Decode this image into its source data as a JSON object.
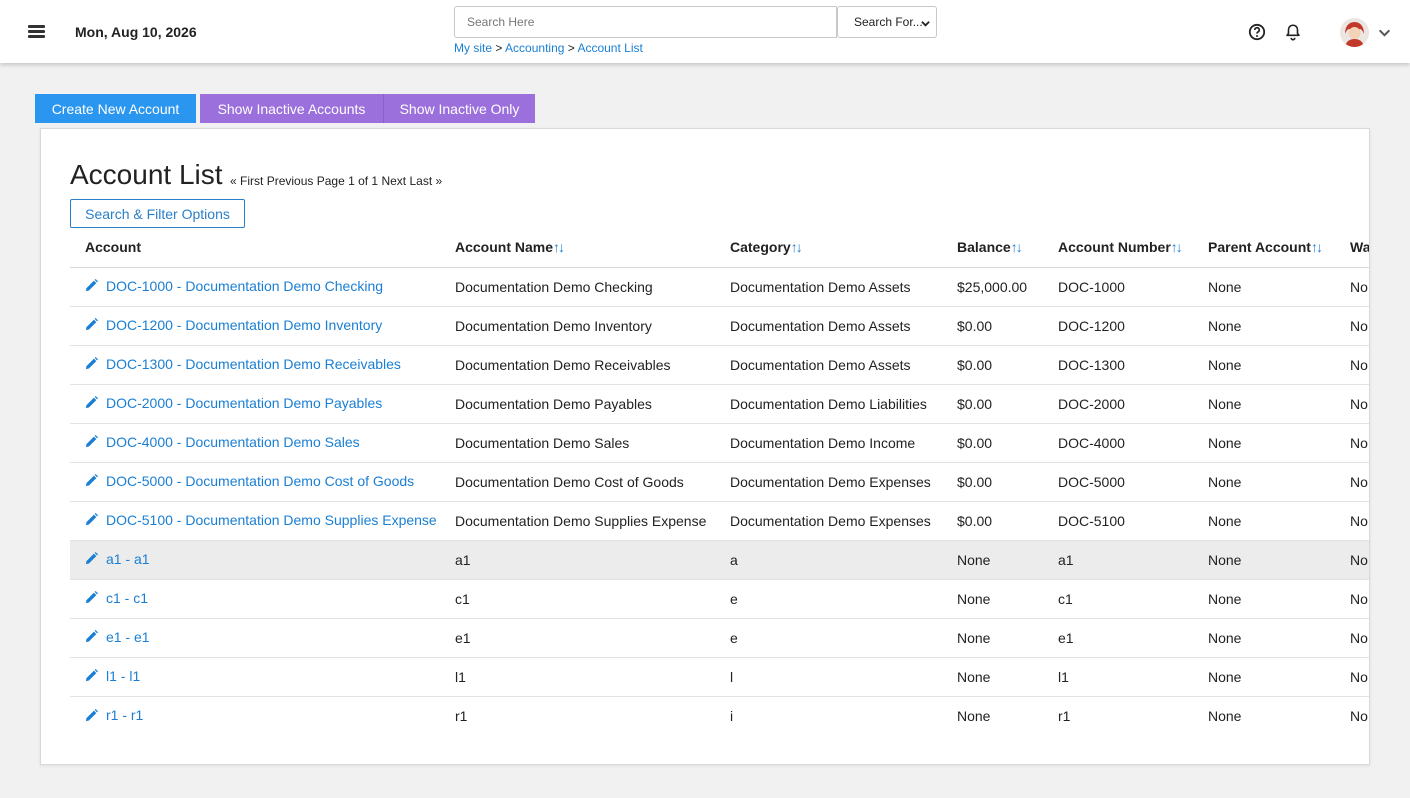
{
  "header": {
    "date": "Mon, Aug 10, 2026",
    "search_placeholder": "Search Here",
    "search_select": "Search For...",
    "breadcrumb": [
      "My site",
      "Accounting",
      "Account List"
    ],
    "breadcrumb_sep": ">"
  },
  "actions": {
    "create": "Create New Account",
    "show_inactive": "Show Inactive Accounts",
    "show_inactive_only": "Show Inactive Only"
  },
  "page": {
    "title": "Account List",
    "pager": {
      "first": "« First",
      "previous": "Previous",
      "page_info": "Page 1 of 1",
      "next": "Next",
      "last": "Last »"
    },
    "filter_button": "Search & Filter Options"
  },
  "colors": {
    "primary": "#2a96f0",
    "purple": "#9b6fdc",
    "link": "#1a7fd4"
  },
  "table": {
    "sort_glyph": "↑↓",
    "columns": [
      "Account",
      "Account Name",
      "Category",
      "Balance",
      "Account Number",
      "Parent Account",
      "Wa"
    ],
    "rows": [
      {
        "account": "DOC-1000 - Documentation Demo Checking",
        "name": "Documentation Demo Checking",
        "category": "Documentation Demo Assets",
        "balance": "$25,000.00",
        "number": "DOC-1000",
        "parent": "None",
        "wa": "No"
      },
      {
        "account": "DOC-1200 - Documentation Demo Inventory",
        "name": "Documentation Demo Inventory",
        "category": "Documentation Demo Assets",
        "balance": "$0.00",
        "number": "DOC-1200",
        "parent": "None",
        "wa": "No"
      },
      {
        "account": "DOC-1300 - Documentation Demo Receivables",
        "name": "Documentation Demo Receivables",
        "category": "Documentation Demo Assets",
        "balance": "$0.00",
        "number": "DOC-1300",
        "parent": "None",
        "wa": "No"
      },
      {
        "account": "DOC-2000 - Documentation Demo Payables",
        "name": "Documentation Demo Payables",
        "category": "Documentation Demo Liabilities",
        "balance": "$0.00",
        "number": "DOC-2000",
        "parent": "None",
        "wa": "No"
      },
      {
        "account": "DOC-4000 - Documentation Demo Sales",
        "name": "Documentation Demo Sales",
        "category": "Documentation Demo Income",
        "balance": "$0.00",
        "number": "DOC-4000",
        "parent": "None",
        "wa": "No"
      },
      {
        "account": "DOC-5000 - Documentation Demo Cost of Goods",
        "name": "Documentation Demo Cost of Goods",
        "category": "Documentation Demo Expenses",
        "balance": "$0.00",
        "number": "DOC-5000",
        "parent": "None",
        "wa": "No"
      },
      {
        "account": "DOC-5100 - Documentation Demo Supplies Expense",
        "name": "Documentation Demo Supplies Expense",
        "category": "Documentation Demo Expenses",
        "balance": "$0.00",
        "number": "DOC-5100",
        "parent": "None",
        "wa": "No"
      },
      {
        "account": "a1 - a1",
        "name": "a1",
        "category": "a",
        "balance": "None",
        "number": "a1",
        "parent": "None",
        "wa": "No"
      },
      {
        "account": "c1 - c1",
        "name": "c1",
        "category": "e",
        "balance": "None",
        "number": "c1",
        "parent": "None",
        "wa": "No"
      },
      {
        "account": "e1 - e1",
        "name": "e1",
        "category": "e",
        "balance": "None",
        "number": "e1",
        "parent": "None",
        "wa": "No"
      },
      {
        "account": "l1 - l1",
        "name": "l1",
        "category": "l",
        "balance": "None",
        "number": "l1",
        "parent": "None",
        "wa": "No"
      },
      {
        "account": "r1 - r1",
        "name": "r1",
        "category": "i",
        "balance": "None",
        "number": "r1",
        "parent": "None",
        "wa": "No"
      }
    ]
  }
}
